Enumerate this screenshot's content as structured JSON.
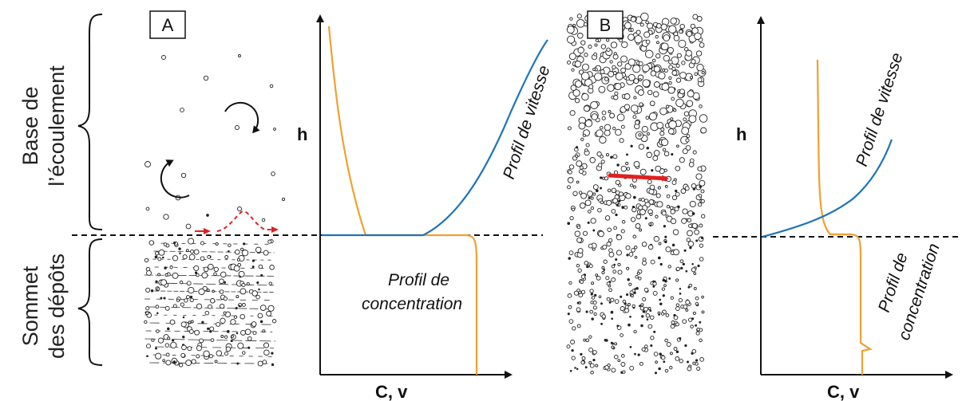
{
  "side_labels": {
    "top_line1": "Base de",
    "top_line2": "l’écoulement",
    "bottom_line1": "Sommet",
    "bottom_line2": "des dépôts"
  },
  "panels": [
    {
      "letter": "A",
      "y_axis_label": "h",
      "x_axis_label": "C, v",
      "velocity_label": "Profil de vitesse",
      "concentration_label_line1": "Profil de",
      "concentration_label_line2": "concentration"
    },
    {
      "letter": "B",
      "y_axis_label": "h",
      "x_axis_label": "C, v",
      "velocity_label": "Profil de vitesse",
      "concentration_label_line1": "Profil de",
      "concentration_label_line2": "concentration"
    }
  ],
  "colors": {
    "velocity": "#1f74b8",
    "concentration": "#f0a030",
    "arrow": "#e02020",
    "ink": "#111111"
  }
}
